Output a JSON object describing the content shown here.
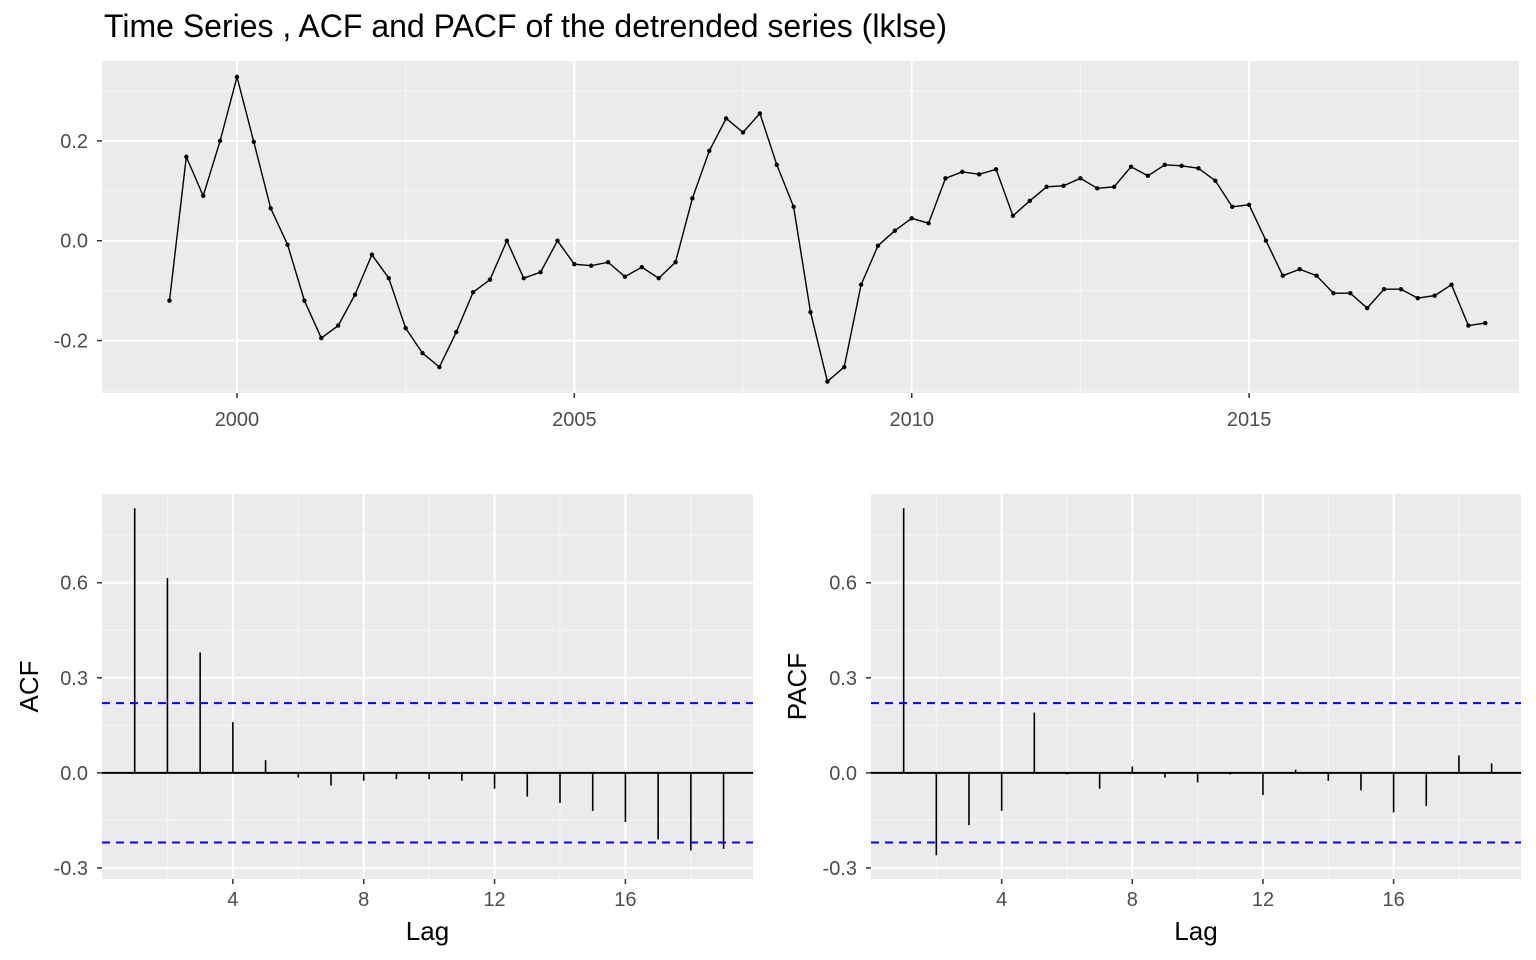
{
  "title": "Time Series , ACF and PACF of the detrended series (lklse)",
  "colors": {
    "panel_bg": "#ebebeb",
    "grid_major": "#ffffff",
    "grid_minor": "#f5f5f5",
    "series": "#000000",
    "ci_line": "#0000ff",
    "tick_text": "#4d4d4d"
  },
  "chart_data": [
    {
      "id": "ts",
      "type": "line",
      "title": "Time Series , ACF and PACF of the detrended series (lklse)",
      "xlabel": "",
      "ylabel": "",
      "x_ticks": [
        2000,
        2005,
        2010,
        2015
      ],
      "y_ticks": [
        -0.2,
        0.0,
        0.2
      ],
      "y_tick_labels": [
        "-0.2",
        "0.0",
        "0.2"
      ],
      "xlim": [
        1998.0,
        2019.0
      ],
      "ylim": [
        -0.305,
        0.36
      ],
      "grid": true,
      "markers": true,
      "series": [
        {
          "x_start": 1999.0,
          "step": 0.25,
          "values": [
            -0.12,
            0.168,
            0.09,
            0.2,
            0.328,
            0.198,
            0.065,
            -0.008,
            -0.12,
            -0.195,
            -0.17,
            -0.108,
            -0.028,
            -0.075,
            -0.175,
            -0.225,
            -0.253,
            -0.183,
            -0.103,
            -0.078,
            0.0,
            -0.075,
            -0.063,
            0.0,
            -0.047,
            -0.05,
            -0.043,
            -0.072,
            -0.053,
            -0.075,
            -0.043,
            0.085,
            0.18,
            0.245,
            0.217,
            0.255,
            0.152,
            0.068,
            -0.143,
            -0.282,
            -0.253,
            -0.088,
            -0.01,
            0.02,
            0.045,
            0.035,
            0.125,
            0.138,
            0.133,
            0.143,
            0.05,
            0.08,
            0.108,
            0.11,
            0.125,
            0.105,
            0.108,
            0.148,
            0.13,
            0.152,
            0.15,
            0.145,
            0.12,
            0.068,
            0.072,
            0.0,
            -0.07,
            -0.057,
            -0.07,
            -0.105,
            -0.105,
            -0.135,
            -0.097,
            -0.097,
            -0.115,
            -0.11,
            -0.088,
            -0.17,
            -0.165
          ]
        }
      ]
    },
    {
      "id": "acf",
      "type": "bar",
      "xlabel": "Lag",
      "ylabel": "ACF",
      "x_ticks": [
        4,
        8,
        12,
        16
      ],
      "y_ticks": [
        -0.3,
        0.0,
        0.3,
        0.6
      ],
      "y_tick_labels": [
        "-0.3",
        "0.0",
        "0.3",
        "0.6"
      ],
      "xlim": [
        0.0,
        19.9
      ],
      "ylim": [
        -0.335,
        0.88
      ],
      "grid": true,
      "confidence_bound": 0.22,
      "lags": [
        1,
        2,
        3,
        4,
        5,
        6,
        7,
        8,
        9,
        10,
        11,
        12,
        13,
        14,
        15,
        16,
        17,
        18,
        19
      ],
      "values": [
        0.835,
        0.615,
        0.38,
        0.16,
        0.04,
        -0.015,
        -0.04,
        -0.025,
        -0.02,
        -0.02,
        -0.025,
        -0.05,
        -0.075,
        -0.095,
        -0.12,
        -0.155,
        -0.21,
        -0.245,
        -0.24
      ]
    },
    {
      "id": "pacf",
      "type": "bar",
      "xlabel": "Lag",
      "ylabel": "PACF",
      "x_ticks": [
        4,
        8,
        12,
        16
      ],
      "y_ticks": [
        -0.3,
        0.0,
        0.3,
        0.6
      ],
      "y_tick_labels": [
        "-0.3",
        "0.0",
        "0.3",
        "0.6"
      ],
      "xlim": [
        0.0,
        19.9
      ],
      "ylim": [
        -0.335,
        0.88
      ],
      "grid": true,
      "confidence_bound": 0.22,
      "lags": [
        1,
        2,
        3,
        4,
        5,
        6,
        7,
        8,
        9,
        10,
        11,
        12,
        13,
        14,
        15,
        16,
        17,
        18,
        19
      ],
      "values": [
        0.835,
        -0.26,
        -0.165,
        -0.12,
        0.19,
        -0.005,
        -0.05,
        0.02,
        -0.015,
        -0.03,
        -0.005,
        -0.07,
        0.01,
        -0.025,
        -0.055,
        -0.125,
        -0.105,
        0.055,
        0.03
      ]
    }
  ]
}
